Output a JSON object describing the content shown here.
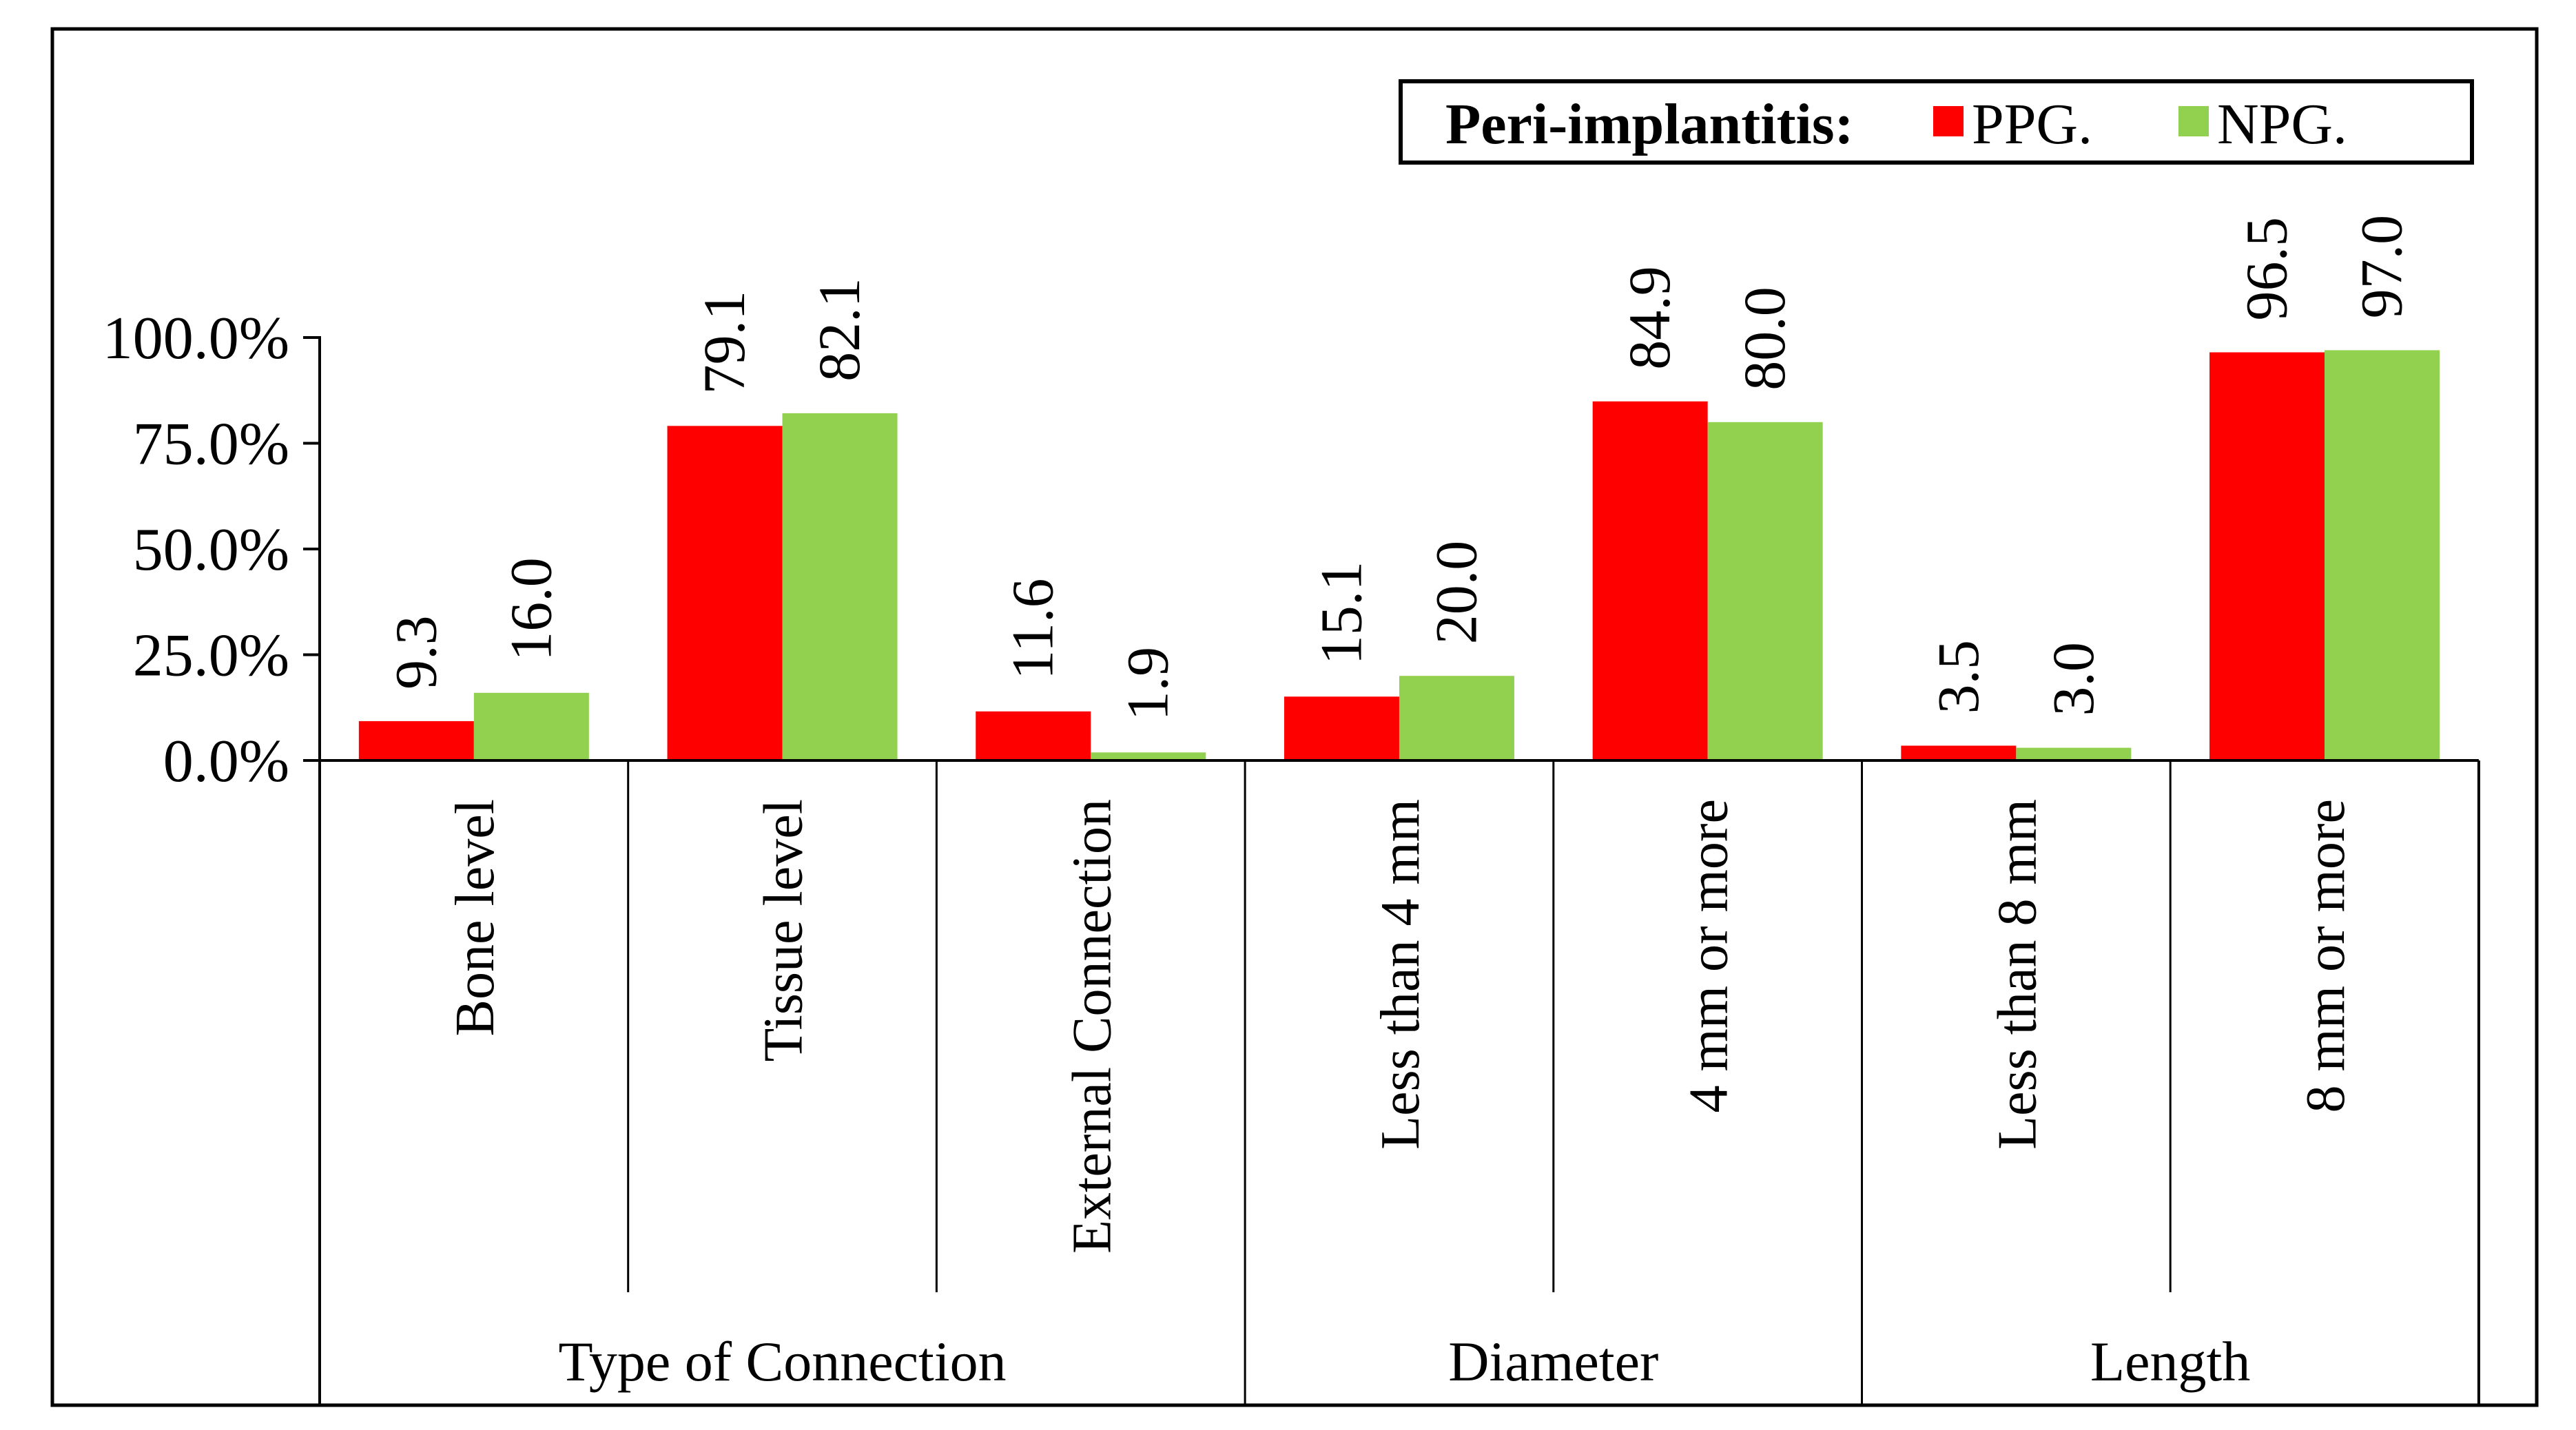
{
  "chart_data": {
    "type": "bar",
    "title": "",
    "xlabel": "",
    "ylabel": "",
    "ylim": [
      0,
      100
    ],
    "y_ticks": [
      "0.0%",
      "25.0%",
      "50.0%",
      "75.0%",
      "100.0%"
    ],
    "y_tick_values": [
      0,
      25,
      50,
      75,
      100
    ],
    "categories": [
      "Bone level",
      "Tissue level",
      "External Connection",
      "Less than 4 mm",
      "4 mm or more",
      "Less than 8 mm",
      "8 mm or more"
    ],
    "groups": [
      {
        "label": "Type of Connection",
        "count": 3
      },
      {
        "label": "Diameter",
        "count": 2
      },
      {
        "label": "Length",
        "count": 2
      }
    ],
    "series": [
      {
        "name": "PPG.",
        "color": "#ff0000",
        "values": [
          9.3,
          79.1,
          11.6,
          15.1,
          84.9,
          3.5,
          96.5
        ],
        "labels": [
          "9.3",
          "79.1",
          "11.6",
          "15.1",
          "84.9",
          "3.5",
          "96.5"
        ]
      },
      {
        "name": "NPG.",
        "color": "#92d050",
        "values": [
          16.0,
          82.1,
          1.9,
          20.0,
          80.0,
          3.0,
          97.0
        ],
        "labels": [
          "16.0",
          "82.1",
          "1.9",
          "20.0",
          "80.0",
          "3.0",
          "97.0"
        ]
      }
    ],
    "legend": {
      "title": "Peri-implantitis:",
      "placement": "top-right"
    },
    "grid": false
  }
}
